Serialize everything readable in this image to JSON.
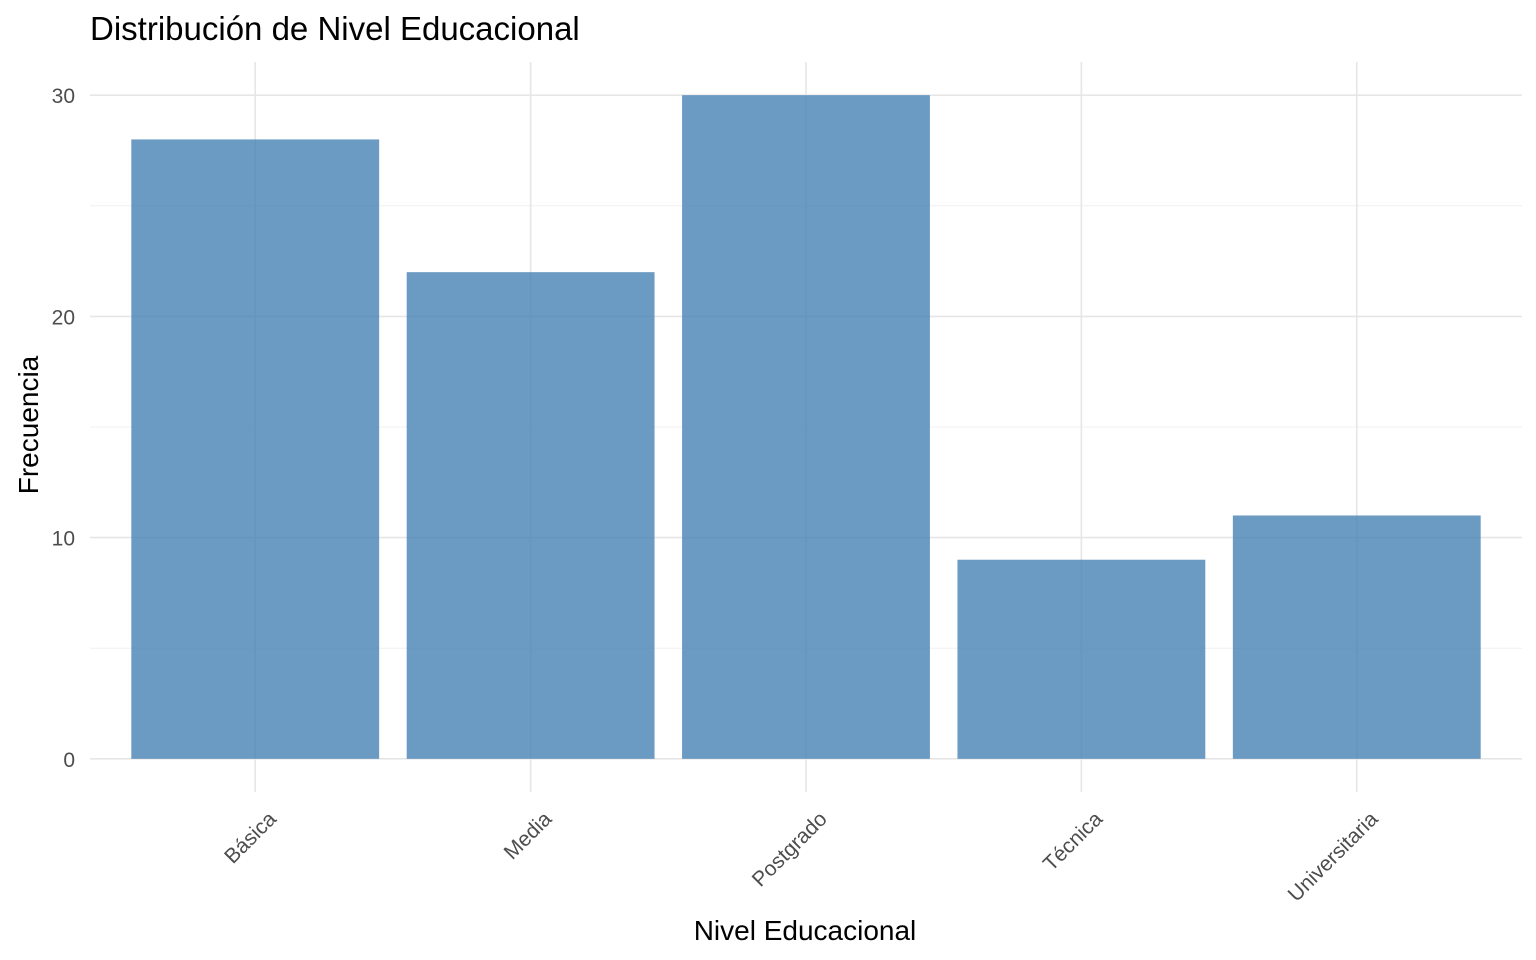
{
  "chart_data": {
    "type": "bar",
    "title": "Distribución de Nivel Educacional",
    "xlabel": "Nivel Educacional",
    "ylabel": "Frecuencia",
    "categories": [
      "Básica",
      "Media",
      "Postgrado",
      "Técnica",
      "Universitaria"
    ],
    "values": [
      28,
      22,
      30,
      9,
      11
    ],
    "ylim": [
      -1.5,
      31.5
    ],
    "yticks": [
      0,
      10,
      20,
      30
    ],
    "bar_color": "#4682B4",
    "grid": true,
    "legend": "none"
  }
}
